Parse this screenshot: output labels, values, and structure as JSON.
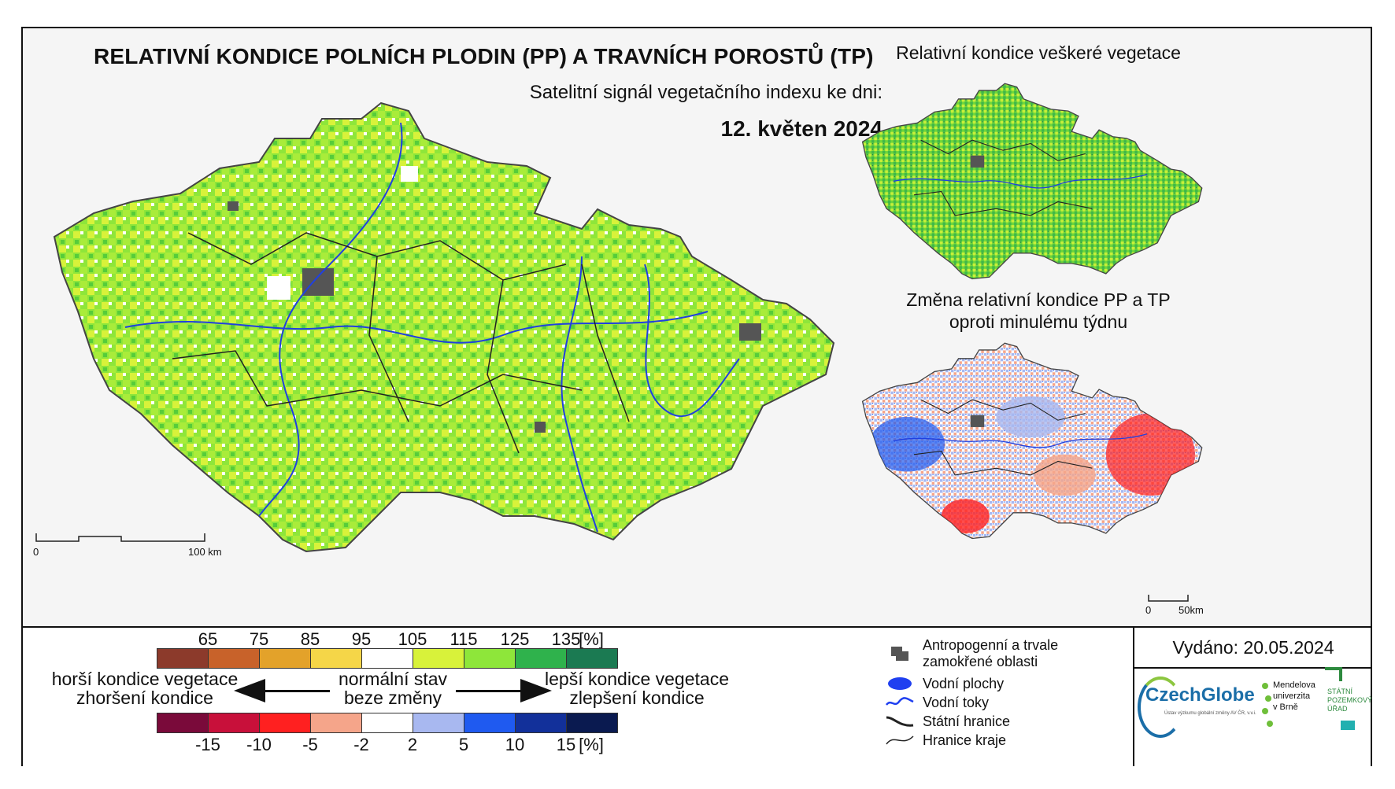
{
  "header": {
    "title": "RELATIVNÍ KONDICE POLNÍCH PLODIN (PP) A TRAVNÍCH POROSTŮ (TP)",
    "subtitle": "Satelitní signál vegetačního indexu ke dni:",
    "date": "12. květen 2024"
  },
  "insets": {
    "vegetation_title": "Relativní kondice veškeré vegetace",
    "change_title_line1": "Změna relativní kondice PP a TP",
    "change_title_line2": "oproti minulému týdnu"
  },
  "scalebars": {
    "main_start": "0",
    "main_end": "100 km",
    "inset_start": "0",
    "inset_end": "50km"
  },
  "legend_condition": {
    "ticks": [
      "65",
      "75",
      "85",
      "95",
      "105",
      "115",
      "125",
      "135",
      "[%]"
    ],
    "colors": [
      "#8c3a2b",
      "#c8622a",
      "#e3a22a",
      "#f5d648",
      "#ffffff",
      "#d8f23a",
      "#8ee63a",
      "#2fb24c",
      "#1b7a52"
    ]
  },
  "legend_change": {
    "ticks": [
      "-15",
      "-10",
      "-5",
      "-2",
      "2",
      "5",
      "10",
      "15",
      "[%]"
    ],
    "colors": [
      "#7a0a3a",
      "#c8103a",
      "#ff2020",
      "#f5a58a",
      "#ffffff",
      "#a8b8f0",
      "#1f5af0",
      "#12309a",
      "#0a1a50"
    ]
  },
  "legend_text": {
    "worse_line1": "horší kondice vegetace",
    "worse_line2": "zhoršení kondice",
    "normal_line1": "normální stav",
    "normal_line2": "beze změny",
    "better_line1": "lepší kondice vegetace",
    "better_line2": "zlepšení kondice"
  },
  "symbols": {
    "anthropogenic_line1": "Antropogenní a trvale",
    "anthropogenic_line2": "zamokřené oblasti",
    "water_areas": "Vodní plochy",
    "rivers": "Vodní toky",
    "state_border": "Státní hranice",
    "region_border": "Hranice kraje"
  },
  "issued": "Vydáno: 20.05.2024",
  "logos": {
    "czechglobe": "CzechGlobe",
    "czechglobe_sub": "Ústav výzkumu globální změny AV ČR, v.v.i.",
    "mendel_line1": "Mendelova",
    "mendel_line2": "univerzita",
    "mendel_line3": "v Brně",
    "spu_line1": "STÁTNÍ",
    "spu_line2": "POZEMKOVÝ",
    "spu_line3": "ÚŘAD"
  }
}
